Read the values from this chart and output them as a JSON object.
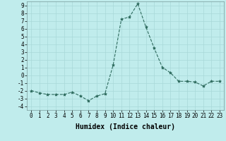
{
  "x": [
    0,
    1,
    2,
    3,
    4,
    5,
    6,
    7,
    8,
    9,
    10,
    11,
    12,
    13,
    14,
    15,
    16,
    17,
    18,
    19,
    20,
    21,
    22,
    23
  ],
  "y": [
    -2.0,
    -2.3,
    -2.5,
    -2.5,
    -2.5,
    -2.2,
    -2.7,
    -3.3,
    -2.7,
    -2.4,
    1.3,
    7.2,
    7.5,
    9.2,
    6.2,
    3.5,
    1.0,
    0.3,
    -0.8,
    -0.8,
    -0.9,
    -1.4,
    -0.8,
    -0.8
  ],
  "line_color": "#2e6b5e",
  "marker": "*",
  "marker_color": "#2e6b5e",
  "bg_color": "#c0ecec",
  "grid_color": "#a8d8d8",
  "xlabel": "Humidex (Indice chaleur)",
  "xlim": [
    -0.5,
    23.5
  ],
  "ylim": [
    -4.5,
    9.5
  ],
  "xticks": [
    0,
    1,
    2,
    3,
    4,
    5,
    6,
    7,
    8,
    9,
    10,
    11,
    12,
    13,
    14,
    15,
    16,
    17,
    18,
    19,
    20,
    21,
    22,
    23
  ],
  "yticks": [
    -4,
    -3,
    -2,
    -1,
    0,
    1,
    2,
    3,
    4,
    5,
    6,
    7,
    8,
    9
  ],
  "tick_fontsize": 5.5,
  "label_fontsize": 7.0
}
